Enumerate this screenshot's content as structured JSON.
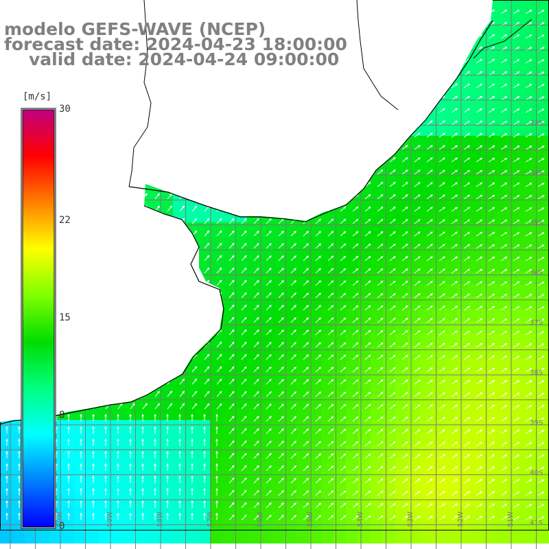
{
  "header": {
    "line1": "modelo GEFS-WAVE (NCEP)",
    "line2": "forecast date: 2024-04-23 18:00:00",
    "line3": "valid date: 2024-04-24 09:00:00"
  },
  "colorbar": {
    "unit": "[m/s]",
    "ticks": [
      "30",
      "22",
      "15",
      "8",
      "0"
    ],
    "tick_values": [
      30,
      22,
      15,
      8,
      0
    ],
    "range": [
      0,
      30
    ],
    "colors": [
      "#0000ff",
      "#0080ff",
      "#00ffff",
      "#00ff80",
      "#00dd00",
      "#80ff00",
      "#ffff00",
      "#ff8000",
      "#ff0000",
      "#c00080"
    ]
  },
  "map": {
    "latitude_labels": [
      "33S",
      "34S",
      "35S",
      "36S",
      "37S",
      "38S",
      "39S",
      "40S",
      "41S"
    ],
    "latitudes": [
      33,
      34,
      35,
      36,
      37,
      38,
      39,
      40,
      41
    ],
    "longitude_labels": [
      "60W",
      "59W",
      "58W",
      "57W",
      "56W",
      "55W",
      "54W",
      "53W",
      "52W",
      "51W"
    ],
    "longitudes": [
      60,
      59,
      58,
      57,
      56,
      55,
      54,
      53,
      52,
      51
    ],
    "land_color": "#ffffff",
    "grid_color": "#7a7a7a",
    "coast_color": "#000000",
    "arrow_color": "#ffffff",
    "wind_direction": "towards north-east in the east, north in the south-west"
  }
}
